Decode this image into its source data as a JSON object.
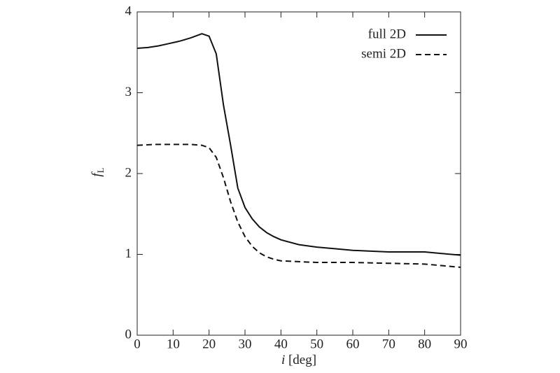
{
  "chart_data": {
    "type": "line",
    "xlabel_italic": "i",
    "xlabel": "[deg]",
    "ylabel": "f",
    "ylabel_subscript": "L",
    "xlim": [
      0,
      90
    ],
    "xticks": [
      0,
      10,
      20,
      30,
      40,
      50,
      60,
      70,
      80,
      90
    ],
    "ylim": [
      0,
      4
    ],
    "yticks": [
      0,
      1,
      2,
      3,
      4
    ],
    "legend": "upper right",
    "series": [
      {
        "name": "full 2D",
        "color": "#111111",
        "dash": "solid",
        "x": [
          0,
          3,
          6,
          9,
          12,
          15,
          18,
          20,
          22,
          24,
          26,
          28,
          30,
          32,
          34,
          36,
          38,
          40,
          45,
          50,
          55,
          60,
          65,
          70,
          75,
          80,
          85,
          90
        ],
        "values": [
          3.55,
          3.56,
          3.58,
          3.61,
          3.64,
          3.68,
          3.73,
          3.7,
          3.48,
          2.85,
          2.35,
          1.82,
          1.58,
          1.44,
          1.34,
          1.27,
          1.22,
          1.18,
          1.12,
          1.09,
          1.07,
          1.05,
          1.04,
          1.03,
          1.03,
          1.03,
          1.01,
          0.99
        ]
      },
      {
        "name": "semi 2D",
        "color": "#111111",
        "dash": "dashed",
        "x": [
          0,
          5,
          10,
          15,
          18,
          20,
          22,
          24,
          26,
          28,
          30,
          32,
          34,
          36,
          38,
          40,
          45,
          50,
          60,
          70,
          80,
          85,
          90
        ],
        "values": [
          2.35,
          2.36,
          2.36,
          2.36,
          2.35,
          2.32,
          2.2,
          1.95,
          1.65,
          1.4,
          1.22,
          1.1,
          1.02,
          0.97,
          0.94,
          0.92,
          0.91,
          0.9,
          0.9,
          0.89,
          0.88,
          0.86,
          0.84
        ]
      }
    ]
  }
}
